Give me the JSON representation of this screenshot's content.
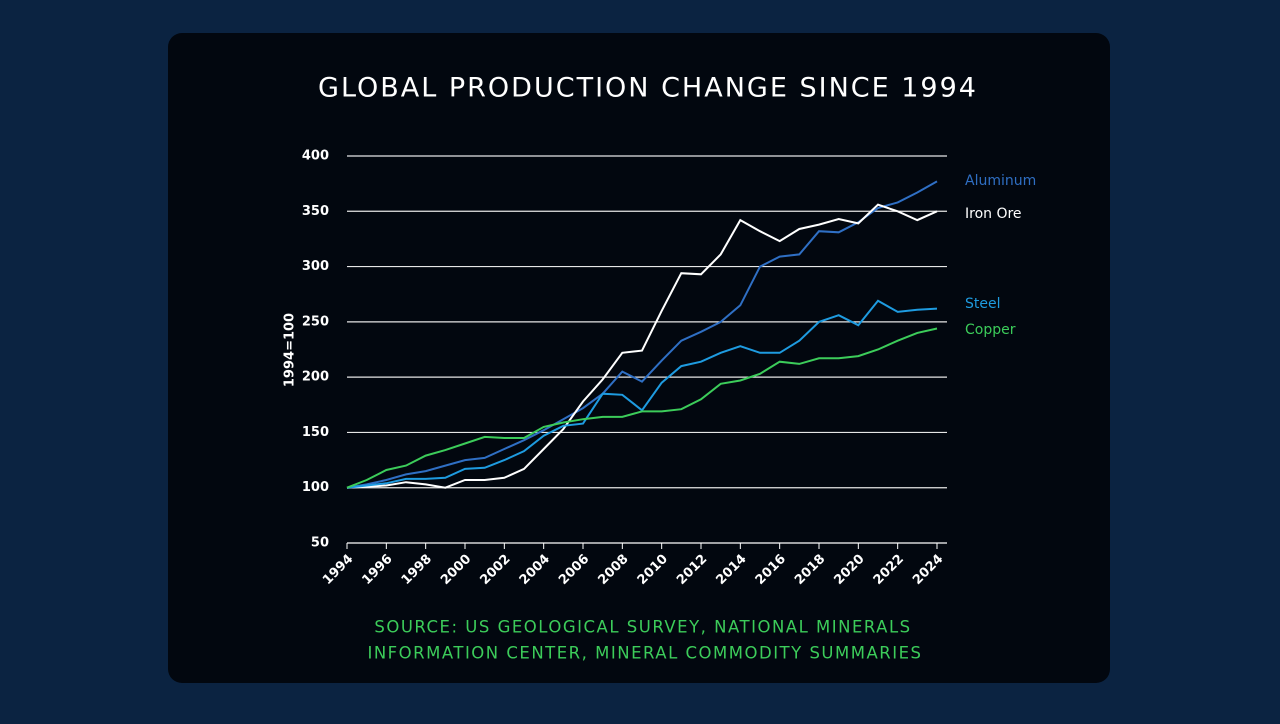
{
  "chart_data": {
    "type": "line",
    "title": "GLOBAL PRODUCTION CHANGE SINCE 1994",
    "y_label": "1994=100",
    "source": [
      "SOURCE: US GEOLOGICAL SURVEY, NATIONAL MINERALS",
      "INFORMATION CENTER, MINERAL COMMODITY SUMMARIES"
    ],
    "x": [
      1994,
      1995,
      1996,
      1997,
      1998,
      1999,
      2000,
      2001,
      2002,
      2003,
      2004,
      2005,
      2006,
      2007,
      2008,
      2009,
      2010,
      2011,
      2012,
      2013,
      2014,
      2015,
      2016,
      2017,
      2018,
      2019,
      2020,
      2021,
      2022,
      2023,
      2024
    ],
    "xlim": [
      1994,
      2024
    ],
    "xticks": [
      1994,
      1996,
      1998,
      2000,
      2002,
      2004,
      2006,
      2008,
      2010,
      2012,
      2014,
      2016,
      2018,
      2020,
      2022,
      2024
    ],
    "ylim": [
      50,
      400
    ],
    "yticks": [
      50,
      100,
      150,
      200,
      250,
      300,
      350,
      400
    ],
    "grid": true,
    "series": [
      {
        "name": "Aluminum",
        "color": "#2f6fc4",
        "values": [
          100,
          103,
          107,
          112,
          115,
          120,
          125,
          127,
          135,
          143,
          152,
          162,
          172,
          185,
          205,
          196,
          215,
          233,
          241,
          250,
          265,
          300,
          309,
          311,
          332,
          331,
          340,
          353,
          358,
          367,
          377
        ]
      },
      {
        "name": "Iron Ore",
        "color": "#ffffff",
        "values": [
          100,
          101,
          102,
          105,
          103,
          100,
          107,
          107,
          109,
          117,
          135,
          153,
          178,
          198,
          222,
          224,
          260,
          294,
          293,
          311,
          342,
          332,
          323,
          334,
          338,
          343,
          339,
          356,
          350,
          342,
          350
        ]
      },
      {
        "name": "Steel",
        "color": "#1e9be0",
        "values": [
          100,
          102,
          104,
          108,
          108,
          109,
          117,
          118,
          125,
          133,
          147,
          156,
          158,
          185,
          184,
          170,
          195,
          210,
          214,
          222,
          228,
          222,
          222,
          233,
          250,
          256,
          247,
          269,
          259,
          261,
          262
        ]
      },
      {
        "name": "Copper",
        "color": "#3ccc5a",
        "values": [
          100,
          107,
          116,
          120,
          129,
          134,
          140,
          146,
          145,
          145,
          155,
          159,
          162,
          164,
          164,
          169,
          169,
          171,
          180,
          194,
          197,
          203,
          214,
          212,
          217,
          217,
          219,
          225,
          233,
          240,
          244
        ]
      }
    ]
  }
}
